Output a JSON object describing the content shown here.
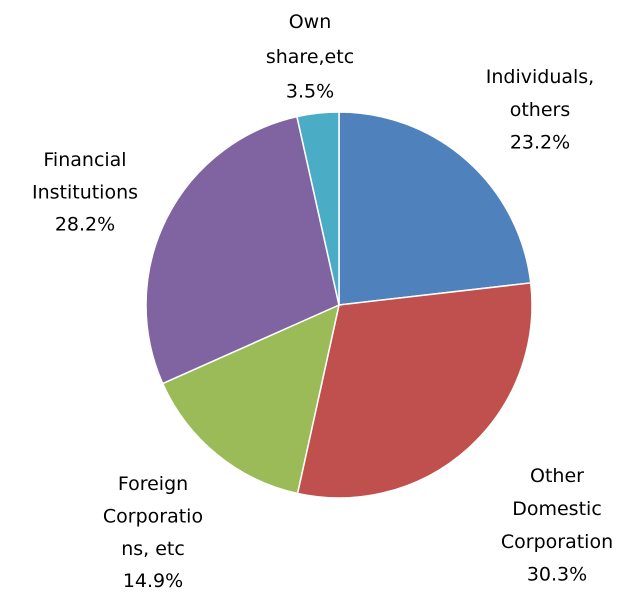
{
  "chart_data": {
    "type": "pie",
    "categories": [
      "Individuals, others",
      "Other Domestic Corporation",
      "Foreign Corporations, etc",
      "Financial Institutions",
      "Own share,etc"
    ],
    "values": [
      23.2,
      30.3,
      14.9,
      28.2,
      3.5
    ],
    "value_labels": [
      "23.2%",
      "30.3%",
      "14.9%",
      "28.2%",
      "3.5%"
    ],
    "colors": [
      "#4f81bd",
      "#c0504d",
      "#9bbb59",
      "#8064a2",
      "#4bacc6"
    ]
  }
}
